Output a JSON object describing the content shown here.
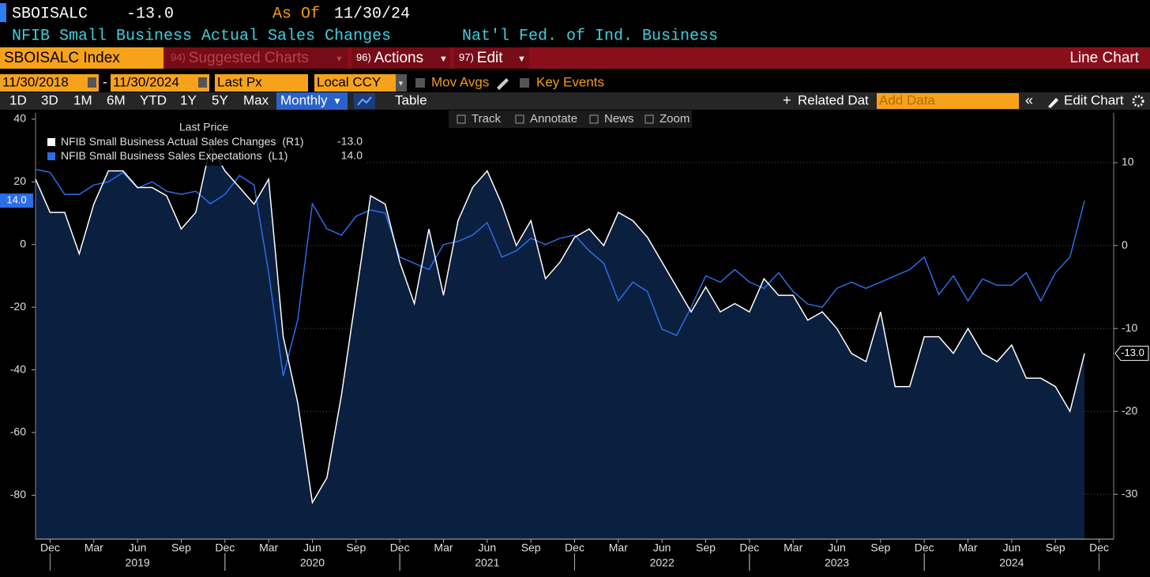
{
  "header": {
    "ticker": "SBOISALC",
    "last": "-13.0",
    "as_of_label": "As Of",
    "as_of": "11/30/24",
    "description": "NFIB Small Business Actual Sales Changes",
    "source": "Nat'l Fed. of Ind. Business"
  },
  "toolbar": {
    "security": "SBOISALC Index",
    "menus": [
      {
        "num": "94)",
        "label": "Suggested Charts"
      },
      {
        "num": "96)",
        "label": "Actions"
      },
      {
        "num": "97)",
        "label": "Edit"
      }
    ],
    "chart_type": "Line Chart"
  },
  "controls": {
    "start_date": "11/30/2018",
    "date_separator": "-",
    "end_date": "11/30/2024",
    "field": "Last Px",
    "currency": "Local CCY",
    "options": [
      "Mov Avgs",
      "Key Events"
    ]
  },
  "periods": [
    "1D",
    "3D",
    "1M",
    "6M",
    "YTD",
    "1Y",
    "5Y",
    "Max"
  ],
  "frequency": "Monthly",
  "table": "Table",
  "related": "Related Dat",
  "add_data": "Add Data",
  "edit_chart": "Edit Chart",
  "chart_tools": [
    "Track",
    "Annotate",
    "News",
    "Zoom"
  ],
  "chart_data": {
    "type": "line",
    "legend_title": "Last Price",
    "x": [
      "2018-11",
      "2018-12",
      "2019-01",
      "2019-02",
      "2019-03",
      "2019-04",
      "2019-05",
      "2019-06",
      "2019-07",
      "2019-08",
      "2019-09",
      "2019-10",
      "2019-11",
      "2019-12",
      "2020-01",
      "2020-02",
      "2020-03",
      "2020-04",
      "2020-05",
      "2020-06",
      "2020-07",
      "2020-08",
      "2020-09",
      "2020-10",
      "2020-11",
      "2020-12",
      "2021-01",
      "2021-02",
      "2021-03",
      "2021-04",
      "2021-05",
      "2021-06",
      "2021-07",
      "2021-08",
      "2021-09",
      "2021-10",
      "2021-11",
      "2021-12",
      "2022-01",
      "2022-02",
      "2022-03",
      "2022-04",
      "2022-05",
      "2022-06",
      "2022-07",
      "2022-08",
      "2022-09",
      "2022-10",
      "2022-11",
      "2022-12",
      "2023-01",
      "2023-02",
      "2023-03",
      "2023-04",
      "2023-05",
      "2023-06",
      "2023-07",
      "2023-08",
      "2023-09",
      "2023-10",
      "2023-11",
      "2023-12",
      "2024-01",
      "2024-02",
      "2024-03",
      "2024-04",
      "2024-05",
      "2024-06",
      "2024-07",
      "2024-08",
      "2024-09",
      "2024-10",
      "2024-11"
    ],
    "xlim": [
      "2018-11",
      "2025-01"
    ],
    "xticks": [
      {
        "value": "2018-12",
        "label": "Dec"
      },
      {
        "value": "2019-03",
        "label": "Mar"
      },
      {
        "value": "2019-06",
        "label": "Jun"
      },
      {
        "value": "2019-09",
        "label": "Sep"
      },
      {
        "value": "2019-12",
        "label": "Dec"
      },
      {
        "value": "2020-03",
        "label": "Mar"
      },
      {
        "value": "2020-06",
        "label": "Jun"
      },
      {
        "value": "2020-09",
        "label": "Sep"
      },
      {
        "value": "2020-12",
        "label": "Dec"
      },
      {
        "value": "2021-03",
        "label": "Mar"
      },
      {
        "value": "2021-06",
        "label": "Jun"
      },
      {
        "value": "2021-09",
        "label": "Sep"
      },
      {
        "value": "2021-12",
        "label": "Dec"
      },
      {
        "value": "2022-03",
        "label": "Mar"
      },
      {
        "value": "2022-06",
        "label": "Jun"
      },
      {
        "value": "2022-09",
        "label": "Sep"
      },
      {
        "value": "2022-12",
        "label": "Dec"
      },
      {
        "value": "2023-03",
        "label": "Mar"
      },
      {
        "value": "2023-06",
        "label": "Jun"
      },
      {
        "value": "2023-09",
        "label": "Sep"
      },
      {
        "value": "2023-12",
        "label": "Dec"
      },
      {
        "value": "2024-03",
        "label": "Mar"
      },
      {
        "value": "2024-06",
        "label": "Jun"
      },
      {
        "value": "2024-09",
        "label": "Sep"
      },
      {
        "value": "2024-12",
        "label": "Dec"
      }
    ],
    "year_labels": [
      {
        "value": "2019-06",
        "label": "2019"
      },
      {
        "value": "2020-06",
        "label": "2020"
      },
      {
        "value": "2021-06",
        "label": "2021"
      },
      {
        "value": "2022-06",
        "label": "2022"
      },
      {
        "value": "2023-06",
        "label": "2023"
      },
      {
        "value": "2024-06",
        "label": "2024"
      }
    ],
    "ylim": [
      -94,
      42
    ],
    "yticks": [
      40,
      20,
      0,
      -20,
      -40,
      -60,
      -80
    ],
    "y2lim": [
      -35.4,
      16
    ],
    "y2ticks": [
      10,
      0,
      -10,
      -20,
      -30
    ],
    "grid": true,
    "series": [
      {
        "name": "NFIB Small Business Actual Sales Changes",
        "axis": "y2",
        "axis_label": "(R1)",
        "color": "#ffffff",
        "fill": "#0b1f3f",
        "last_label": "-13.0",
        "values": [
          8,
          4,
          4,
          -1,
          5,
          9,
          9,
          7,
          7,
          6,
          2,
          4,
          12,
          9,
          7,
          5,
          8,
          -11,
          -19,
          -31,
          -28,
          -18,
          -6,
          6,
          5,
          -2,
          -7,
          2,
          -6,
          3,
          7,
          9,
          5,
          0,
          3,
          -4,
          -2,
          1,
          2,
          0,
          4,
          3,
          1,
          -2,
          -5,
          -8,
          -5,
          -8,
          -7,
          -8,
          -4,
          -6,
          -6,
          -9,
          -8,
          -10,
          -13,
          -14,
          -8,
          -17,
          -17,
          -11,
          -11,
          -13,
          -10,
          -13,
          -14,
          -12,
          -16,
          -16,
          -17,
          -20,
          -13
        ]
      },
      {
        "name": "NFIB Small Business Sales Expectations",
        "axis": "y",
        "axis_label": "(L1)",
        "color": "#2a6ee8",
        "last_label": "14.0",
        "values": [
          24,
          23,
          16,
          16,
          19,
          20,
          23,
          18,
          20,
          17,
          16,
          17,
          13,
          16,
          22,
          19,
          -9,
          -42,
          -24,
          13,
          5,
          3,
          9,
          11,
          10,
          -4,
          -6,
          -8,
          0,
          1,
          3,
          7,
          -4,
          -2,
          2,
          0,
          2,
          3,
          -2,
          -6,
          -18,
          -12,
          -15,
          -27,
          -29,
          -20,
          -10,
          -12,
          -8,
          -12,
          -14,
          -9,
          -15,
          -19,
          -20,
          -14,
          -12,
          -14,
          -12,
          -10,
          -8,
          -4,
          -16,
          -10,
          -18,
          -11,
          -13,
          -13,
          -9,
          -18,
          -9,
          -4,
          14
        ]
      }
    ]
  }
}
